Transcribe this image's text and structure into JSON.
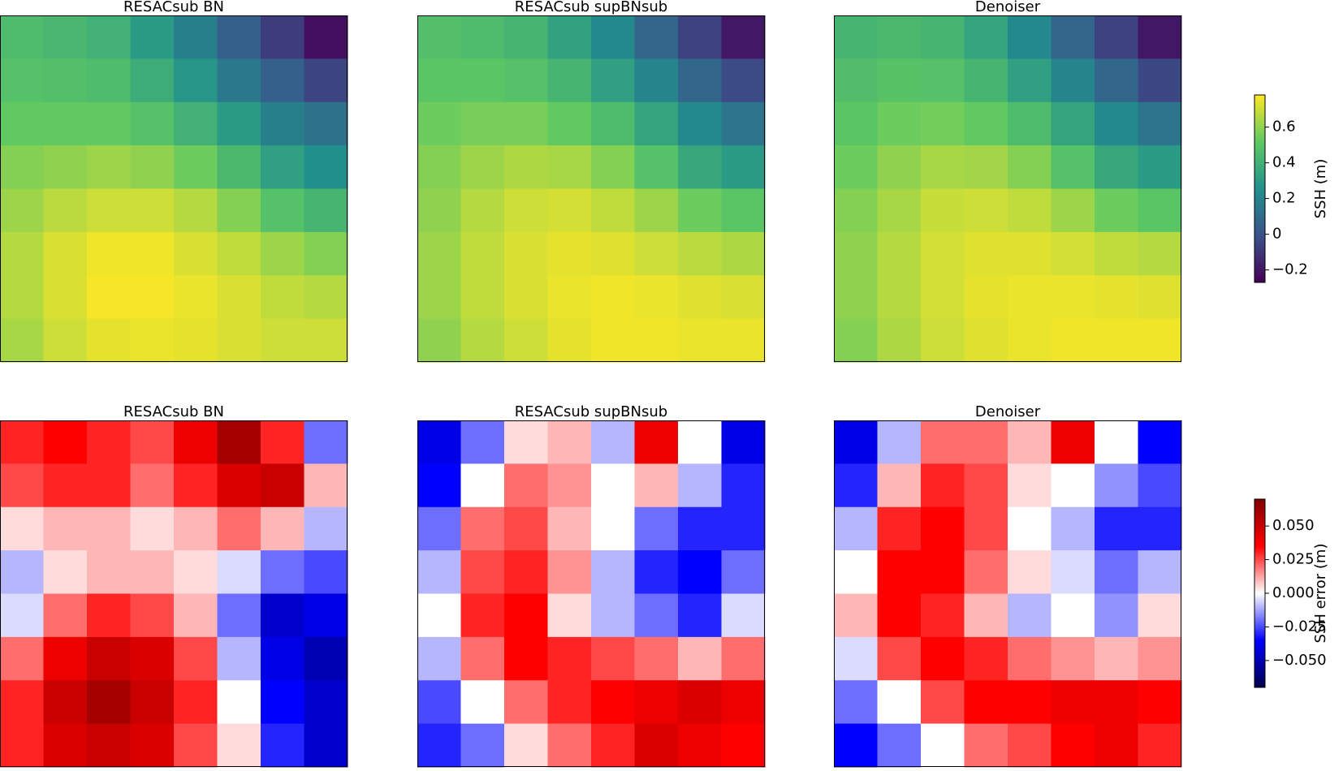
{
  "chart_data": [
    {
      "type": "heatmap-row",
      "colormap": "viridis",
      "colorbar_label": "SSH (m)",
      "clim": [
        -0.27,
        0.78
      ],
      "cticks": [
        {
          "value": -0.2,
          "label": "−0.2"
        },
        0.0,
        0.2,
        0.4,
        0.6
      ],
      "panels": [
        {
          "title": "RESACsub BN",
          "values": [
            [
              0.45,
              0.43,
              0.4,
              0.3,
              0.18,
              0.05,
              -0.08,
              -0.22
            ],
            [
              0.48,
              0.47,
              0.45,
              0.38,
              0.28,
              0.15,
              0.05,
              -0.05
            ],
            [
              0.52,
              0.52,
              0.52,
              0.48,
              0.4,
              0.3,
              0.18,
              0.12
            ],
            [
              0.58,
              0.6,
              0.62,
              0.6,
              0.54,
              0.44,
              0.32,
              0.25
            ],
            [
              0.62,
              0.67,
              0.7,
              0.7,
              0.66,
              0.58,
              0.48,
              0.42
            ],
            [
              0.66,
              0.72,
              0.76,
              0.76,
              0.72,
              0.68,
              0.62,
              0.58
            ],
            [
              0.66,
              0.72,
              0.77,
              0.77,
              0.75,
              0.72,
              0.68,
              0.66
            ],
            [
              0.64,
              0.7,
              0.74,
              0.75,
              0.74,
              0.72,
              0.7,
              0.7
            ]
          ]
        },
        {
          "title": "RESACsub supBNsub",
          "values": [
            [
              0.47,
              0.45,
              0.42,
              0.33,
              0.22,
              0.08,
              -0.06,
              -0.2
            ],
            [
              0.5,
              0.5,
              0.48,
              0.42,
              0.32,
              0.2,
              0.08,
              -0.03
            ],
            [
              0.54,
              0.56,
              0.56,
              0.52,
              0.45,
              0.34,
              0.22,
              0.14
            ],
            [
              0.58,
              0.62,
              0.65,
              0.64,
              0.58,
              0.48,
              0.36,
              0.3
            ],
            [
              0.6,
              0.66,
              0.7,
              0.71,
              0.68,
              0.62,
              0.54,
              0.5
            ],
            [
              0.62,
              0.68,
              0.72,
              0.74,
              0.73,
              0.7,
              0.67,
              0.65
            ],
            [
              0.62,
              0.68,
              0.72,
              0.75,
              0.76,
              0.75,
              0.73,
              0.72
            ],
            [
              0.6,
              0.66,
              0.7,
              0.74,
              0.76,
              0.76,
              0.75,
              0.75
            ]
          ]
        },
        {
          "title": "Denoiser",
          "values": [
            [
              0.42,
              0.44,
              0.42,
              0.34,
              0.22,
              0.08,
              -0.06,
              -0.2
            ],
            [
              0.46,
              0.49,
              0.48,
              0.42,
              0.32,
              0.2,
              0.08,
              -0.04
            ],
            [
              0.5,
              0.54,
              0.55,
              0.52,
              0.45,
              0.34,
              0.22,
              0.14
            ],
            [
              0.54,
              0.6,
              0.64,
              0.63,
              0.58,
              0.48,
              0.36,
              0.3
            ],
            [
              0.58,
              0.64,
              0.69,
              0.7,
              0.68,
              0.62,
              0.54,
              0.5
            ],
            [
              0.6,
              0.66,
              0.71,
              0.73,
              0.73,
              0.71,
              0.68,
              0.66
            ],
            [
              0.6,
              0.66,
              0.71,
              0.74,
              0.75,
              0.75,
              0.74,
              0.73
            ],
            [
              0.58,
              0.65,
              0.7,
              0.73,
              0.75,
              0.76,
              0.76,
              0.76
            ]
          ]
        }
      ]
    },
    {
      "type": "heatmap-row",
      "colormap": "seismic",
      "colorbar_label": "SSH error (m)",
      "clim": [
        -0.07,
        0.07
      ],
      "cticks": [
        {
          "value": -0.05,
          "label": "−0.050"
        },
        {
          "value": -0.025,
          "label": "−0.025"
        },
        {
          "value": 0,
          "label": "0.000"
        },
        {
          "value": 0.025,
          "label": "0.025"
        },
        {
          "value": 0.05,
          "label": "0.050"
        }
      ],
      "panels": [
        {
          "title": "RESACsub BN",
          "values": [
            [
              0.03,
              0.035,
              0.03,
              0.025,
              0.04,
              0.06,
              0.03,
              -0.02
            ],
            [
              0.025,
              0.03,
              0.03,
              0.02,
              0.03,
              0.045,
              0.05,
              0.01
            ],
            [
              0.005,
              0.01,
              0.01,
              0.005,
              0.01,
              0.02,
              0.01,
              -0.01
            ],
            [
              -0.01,
              0.005,
              0.01,
              0.01,
              0.005,
              -0.005,
              -0.02,
              -0.025
            ],
            [
              -0.005,
              0.02,
              0.03,
              0.025,
              0.01,
              -0.02,
              -0.045,
              -0.04
            ],
            [
              0.02,
              0.04,
              0.05,
              0.045,
              0.025,
              -0.01,
              -0.04,
              -0.05
            ],
            [
              0.03,
              0.05,
              0.06,
              0.05,
              0.03,
              0.0,
              -0.035,
              -0.045
            ],
            [
              0.03,
              0.045,
              0.05,
              0.045,
              0.025,
              0.005,
              -0.03,
              -0.045
            ]
          ]
        },
        {
          "title": "RESACsub supBNsub",
          "values": [
            [
              -0.04,
              -0.02,
              0.005,
              0.01,
              -0.01,
              0.04,
              0.0,
              -0.04
            ],
            [
              -0.035,
              0.0,
              0.02,
              0.015,
              0.0,
              0.01,
              -0.01,
              -0.03
            ],
            [
              -0.02,
              0.02,
              0.025,
              0.01,
              0.0,
              -0.02,
              -0.03,
              -0.03
            ],
            [
              -0.01,
              0.025,
              0.03,
              0.015,
              -0.01,
              -0.03,
              -0.035,
              -0.02
            ],
            [
              0.0,
              0.03,
              0.035,
              0.005,
              -0.01,
              -0.02,
              -0.03,
              -0.005
            ],
            [
              -0.01,
              0.02,
              0.035,
              0.03,
              0.025,
              0.02,
              0.01,
              0.02
            ],
            [
              -0.025,
              0.0,
              0.02,
              0.03,
              0.035,
              0.04,
              0.045,
              0.04
            ],
            [
              -0.03,
              -0.02,
              0.005,
              0.02,
              0.03,
              0.045,
              0.04,
              0.035
            ]
          ]
        },
        {
          "title": "Denoiser",
          "values": [
            [
              -0.04,
              -0.01,
              0.02,
              0.02,
              0.01,
              0.04,
              0.0,
              -0.035
            ],
            [
              -0.03,
              0.01,
              0.03,
              0.025,
              0.005,
              0.0,
              -0.015,
              -0.025
            ],
            [
              -0.01,
              0.03,
              0.035,
              0.025,
              0.0,
              -0.01,
              -0.03,
              -0.03
            ],
            [
              0.0,
              0.035,
              0.035,
              0.02,
              0.005,
              -0.005,
              -0.02,
              -0.01
            ],
            [
              0.01,
              0.035,
              0.03,
              0.01,
              -0.01,
              0.0,
              -0.015,
              0.005
            ],
            [
              -0.005,
              0.025,
              0.035,
              0.03,
              0.02,
              0.015,
              0.01,
              0.015
            ],
            [
              -0.02,
              0.0,
              0.025,
              0.035,
              0.035,
              0.04,
              0.04,
              0.035
            ],
            [
              -0.035,
              -0.02,
              0.0,
              0.02,
              0.025,
              0.035,
              0.04,
              0.03
            ]
          ]
        }
      ]
    }
  ]
}
